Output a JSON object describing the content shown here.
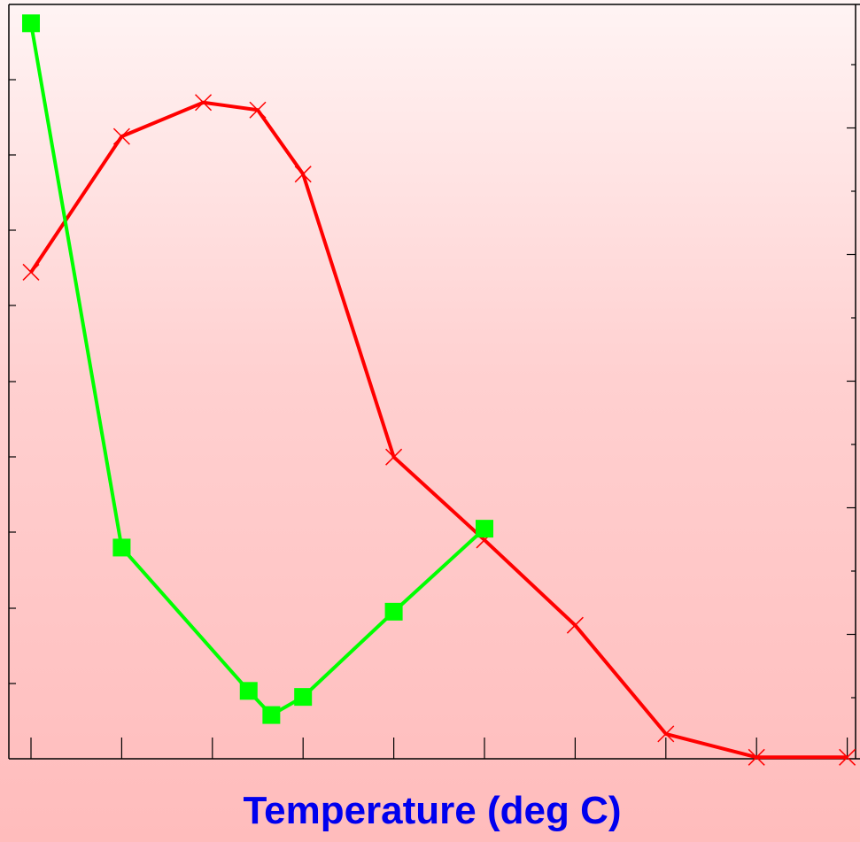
{
  "chart_data": {
    "type": "line",
    "title": "",
    "xlabel": "Temperature (deg C)",
    "ylabel": "",
    "y2label": "",
    "xlim": [
      0,
      9
    ],
    "ylim": [
      0,
      10
    ],
    "y2lim": [
      0,
      10
    ],
    "x_ticks": [
      0,
      1,
      2,
      3,
      4,
      5,
      6,
      7,
      8,
      9
    ],
    "grid": false,
    "legend": "none",
    "series": [
      {
        "axis": "left",
        "color": "#ff0000",
        "marker": "x",
        "points": [
          [
            0,
            6.45
          ],
          [
            1,
            8.25
          ],
          [
            1.9,
            8.7
          ],
          [
            2.5,
            8.6
          ],
          [
            3,
            7.75
          ],
          [
            4,
            4.0
          ],
          [
            5,
            2.9
          ],
          [
            6,
            1.77
          ],
          [
            7,
            0.33
          ],
          [
            8,
            0.02
          ],
          [
            9,
            0.02
          ]
        ]
      },
      {
        "axis": "right",
        "color": "#00ff00",
        "marker": "square",
        "points": [
          [
            0,
            9.75
          ],
          [
            1,
            2.8
          ],
          [
            2.4,
            0.9
          ],
          [
            2.65,
            0.58
          ],
          [
            3,
            0.82
          ],
          [
            4,
            1.95
          ],
          [
            5,
            3.05
          ]
        ]
      }
    ],
    "style": {
      "axis_color": "#000000",
      "xlabel_color": "#0000ee",
      "line_width": 4
    }
  }
}
